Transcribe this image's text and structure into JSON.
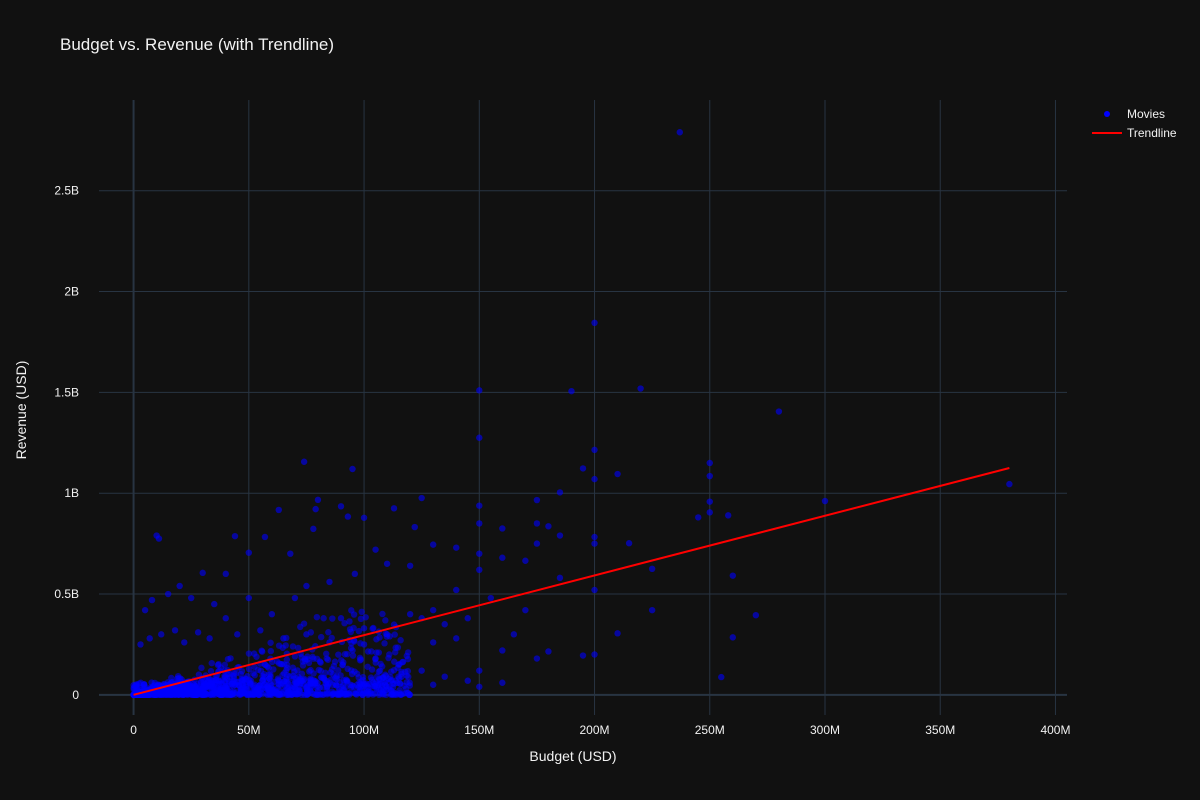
{
  "chart_data": {
    "type": "scatter",
    "title": "Budget vs. Revenue (with Trendline)",
    "xlabel": "Budget (USD)",
    "ylabel": "Revenue (USD)",
    "xlim": [
      -15000000,
      405000000
    ],
    "ylim": [
      -100000000,
      2950000000
    ],
    "x_ticks": [
      {
        "value": 0,
        "label": "0"
      },
      {
        "value": 50000000,
        "label": "50M"
      },
      {
        "value": 100000000,
        "label": "100M"
      },
      {
        "value": 150000000,
        "label": "150M"
      },
      {
        "value": 200000000,
        "label": "200M"
      },
      {
        "value": 250000000,
        "label": "250M"
      },
      {
        "value": 300000000,
        "label": "300M"
      },
      {
        "value": 350000000,
        "label": "350M"
      },
      {
        "value": 400000000,
        "label": "400M"
      }
    ],
    "y_ticks": [
      {
        "value": 0,
        "label": "0"
      },
      {
        "value": 500000000,
        "label": "0.5B"
      },
      {
        "value": 1000000000,
        "label": "1B"
      },
      {
        "value": 1500000000,
        "label": "1.5B"
      },
      {
        "value": 2000000000,
        "label": "2B"
      },
      {
        "value": 2500000000,
        "label": "2.5B"
      }
    ],
    "grid": true,
    "legend": {
      "position": "top-right"
    },
    "series": [
      {
        "name": "Movies",
        "type": "scatter",
        "color": "#0000ff",
        "points": [
          [
            237000000,
            2790000000
          ],
          [
            200000000,
            1845000000
          ],
          [
            220000000,
            1519000000
          ],
          [
            150000000,
            1510000000
          ],
          [
            190000000,
            1506000000
          ],
          [
            280000000,
            1405000000
          ],
          [
            150000000,
            1275000000
          ],
          [
            200000000,
            1215000000
          ],
          [
            250000000,
            1150000000
          ],
          [
            74000000,
            1156000000
          ],
          [
            95000000,
            1120000000
          ],
          [
            195000000,
            1123000000
          ],
          [
            210000000,
            1095000000
          ],
          [
            250000000,
            1085000000
          ],
          [
            200000000,
            1070000000
          ],
          [
            380000000,
            1045000000
          ],
          [
            185000000,
            1004000000
          ],
          [
            125000000,
            976000000
          ],
          [
            80000000,
            967000000
          ],
          [
            175000000,
            966000000
          ],
          [
            250000000,
            958000000
          ],
          [
            300000000,
            961000000
          ],
          [
            150000000,
            938000000
          ],
          [
            90000000,
            935000000
          ],
          [
            113000000,
            925000000
          ],
          [
            250000000,
            905000000
          ],
          [
            245000000,
            880000000
          ],
          [
            258000000,
            890000000
          ],
          [
            79000000,
            921000000
          ],
          [
            63000000,
            917000000
          ],
          [
            100000000,
            878000000
          ],
          [
            93000000,
            884000000
          ],
          [
            122000000,
            832000000
          ],
          [
            78000000,
            823000000
          ],
          [
            150000000,
            850000000
          ],
          [
            160000000,
            825000000
          ],
          [
            180000000,
            836000000
          ],
          [
            175000000,
            850000000
          ],
          [
            10000000,
            790000000
          ],
          [
            11000000,
            775000000
          ],
          [
            44000000,
            787000000
          ],
          [
            57000000,
            783000000
          ],
          [
            200000000,
            783000000
          ],
          [
            185000000,
            790000000
          ],
          [
            215000000,
            752000000
          ],
          [
            175000000,
            750000000
          ],
          [
            200000000,
            750000000
          ],
          [
            130000000,
            745000000
          ],
          [
            140000000,
            730000000
          ],
          [
            105000000,
            720000000
          ],
          [
            50000000,
            705000000
          ],
          [
            68000000,
            700000000
          ],
          [
            150000000,
            700000000
          ],
          [
            160000000,
            680000000
          ],
          [
            170000000,
            665000000
          ],
          [
            225000000,
            625000000
          ],
          [
            260000000,
            591000000
          ],
          [
            185000000,
            580000000
          ],
          [
            150000000,
            620000000
          ],
          [
            120000000,
            640000000
          ],
          [
            110000000,
            650000000
          ],
          [
            96000000,
            600000000
          ],
          [
            40000000,
            600000000
          ],
          [
            30000000,
            605000000
          ],
          [
            75000000,
            540000000
          ],
          [
            85000000,
            560000000
          ],
          [
            200000000,
            520000000
          ],
          [
            140000000,
            520000000
          ],
          [
            270000000,
            395000000
          ],
          [
            225000000,
            420000000
          ],
          [
            210000000,
            305000000
          ],
          [
            200000000,
            200000000
          ],
          [
            195000000,
            195000000
          ],
          [
            260000000,
            285000000
          ],
          [
            255000000,
            88000000
          ],
          [
            180000000,
            215000000
          ],
          [
            175000000,
            180000000
          ],
          [
            150000000,
            120000000
          ],
          [
            120000000,
            400000000
          ],
          [
            125000000,
            380000000
          ],
          [
            130000000,
            420000000
          ],
          [
            135000000,
            350000000
          ],
          [
            145000000,
            380000000
          ],
          [
            165000000,
            300000000
          ],
          [
            170000000,
            420000000
          ],
          [
            155000000,
            480000000
          ],
          [
            160000000,
            220000000
          ],
          [
            140000000,
            280000000
          ],
          [
            130000000,
            260000000
          ],
          [
            100000000,
            330000000
          ],
          [
            110000000,
            300000000
          ],
          [
            100000000,
            250000000
          ],
          [
            90000000,
            380000000
          ],
          [
            70000000,
            480000000
          ],
          [
            60000000,
            400000000
          ],
          [
            50000000,
            480000000
          ],
          [
            40000000,
            380000000
          ],
          [
            35000000,
            450000000
          ],
          [
            25000000,
            480000000
          ],
          [
            20000000,
            540000000
          ],
          [
            15000000,
            500000000
          ],
          [
            8000000,
            470000000
          ],
          [
            5000000,
            420000000
          ],
          [
            7000000,
            280000000
          ],
          [
            3000000,
            250000000
          ],
          [
            12000000,
            300000000
          ],
          [
            18000000,
            320000000
          ],
          [
            22000000,
            260000000
          ],
          [
            28000000,
            310000000
          ],
          [
            33000000,
            280000000
          ],
          [
            45000000,
            300000000
          ],
          [
            55000000,
            320000000
          ],
          [
            65000000,
            280000000
          ],
          [
            75000000,
            300000000
          ],
          [
            85000000,
            260000000
          ],
          [
            95000000,
            220000000
          ],
          [
            105000000,
            180000000
          ],
          [
            115000000,
            150000000
          ],
          [
            125000000,
            120000000
          ],
          [
            135000000,
            90000000
          ],
          [
            145000000,
            70000000
          ],
          [
            150000000,
            40000000
          ],
          [
            160000000,
            60000000
          ],
          [
            130000000,
            50000000
          ],
          [
            100000000,
            20000000
          ],
          [
            90000000,
            10000000
          ]
        ],
        "cluster": {
          "note_hidden": true,
          "count": 1400,
          "budget_max": 120000000
        }
      },
      {
        "name": "Trendline",
        "type": "line",
        "color": "#ff0000",
        "points": [
          [
            0,
            0
          ],
          [
            380000000,
            1125000000
          ]
        ]
      }
    ]
  }
}
